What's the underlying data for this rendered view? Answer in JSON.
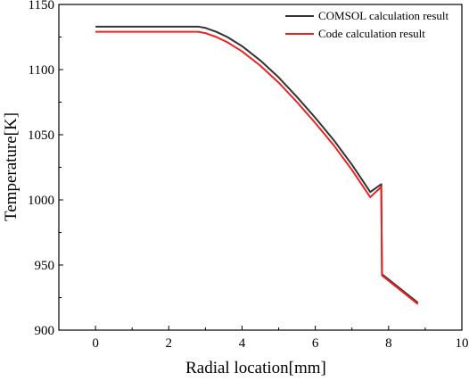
{
  "chart_data": {
    "type": "line",
    "title": "",
    "xlabel": "Radial location[mm]",
    "ylabel": "Temperature[K]",
    "xlim": [
      -1,
      10
    ],
    "ylim": [
      900,
      1150
    ],
    "xticks": [
      0,
      2,
      4,
      6,
      8,
      10
    ],
    "yticks": [
      900,
      950,
      1000,
      1050,
      1100,
      1150
    ],
    "grid": false,
    "legend_position": "top-right",
    "series": [
      {
        "name": "COMSOL calculation result",
        "color": "#333333",
        "x": [
          0,
          0.5,
          1.0,
          1.5,
          2.0,
          2.5,
          2.8,
          3.0,
          3.3,
          3.6,
          4.0,
          4.5,
          5.0,
          5.5,
          6.0,
          6.5,
          7.0,
          7.5,
          7.8,
          7.82,
          8.8
        ],
        "y": [
          1133,
          1133,
          1133,
          1133,
          1133,
          1133,
          1133,
          1132,
          1129,
          1125,
          1118,
          1107,
          1094,
          1079,
          1063,
          1046,
          1027,
          1006,
          1012,
          943,
          921
        ]
      },
      {
        "name": "Code calculation result",
        "color": "#ee2222",
        "x": [
          0,
          0.5,
          1.0,
          1.5,
          2.0,
          2.5,
          2.8,
          3.0,
          3.3,
          3.6,
          4.0,
          4.5,
          5.0,
          5.5,
          6.0,
          6.5,
          7.0,
          7.5,
          7.8,
          7.82,
          8.8
        ],
        "y": [
          1129,
          1129,
          1129,
          1129,
          1129,
          1129,
          1129,
          1128,
          1125,
          1121,
          1114,
          1103,
          1090,
          1075,
          1059,
          1042,
          1023,
          1002,
          1010,
          942,
          920
        ]
      }
    ]
  }
}
